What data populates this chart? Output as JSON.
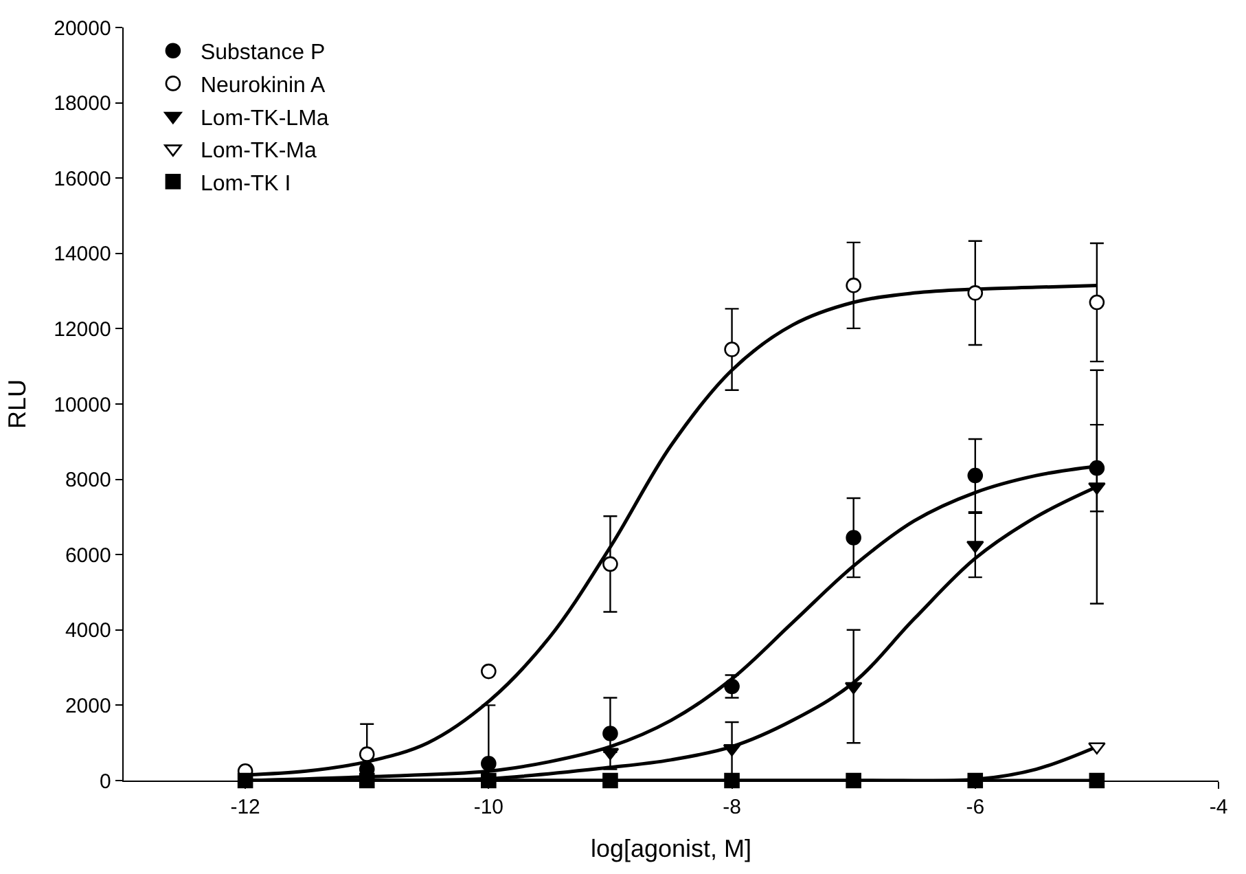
{
  "chart_data": {
    "type": "scatter",
    "xlabel": "log[agonist, M]",
    "ylabel": "RLU",
    "xlim": [
      -13,
      -4
    ],
    "xticks": [
      -12,
      -10,
      -8,
      -6,
      -4
    ],
    "ylim": [
      0,
      20000
    ],
    "yticks": [
      0,
      2000,
      4000,
      6000,
      8000,
      10000,
      12000,
      14000,
      16000,
      18000,
      20000
    ],
    "legend": "top left",
    "series": [
      {
        "name": "Substance P",
        "marker": "circle",
        "color": "#000000",
        "x": [
          -11,
          -10,
          -9,
          -8,
          -7,
          -6,
          -5
        ],
        "values": [
          300,
          450,
          1250,
          2500,
          6450,
          8100,
          8300
        ],
        "errors": [
          null,
          1550,
          950,
          300,
          1050,
          970,
          1150
        ]
      },
      {
        "name": "Neurokinin A",
        "marker": "circle",
        "color": "#ffffff",
        "x": [
          -12,
          -11,
          -10,
          -9,
          -8,
          -7,
          -6,
          -5
        ],
        "values": [
          250,
          700,
          2900,
          5750,
          11450,
          13150,
          12950,
          12700
        ],
        "errors": [
          null,
          800,
          null,
          1270,
          1080,
          1140,
          1380,
          1570
        ]
      },
      {
        "name": "Lom-TK-LMa",
        "marker": "triangle",
        "color": "#000000",
        "x": [
          -9,
          -8,
          -7,
          -6,
          -5
        ],
        "values": [
          750,
          850,
          2500,
          6250,
          7800
        ],
        "errors": [
          null,
          700,
          1500,
          850,
          3100
        ]
      },
      {
        "name": "Lom-TK-Ma",
        "marker": "triangle",
        "color": "#ffffff",
        "x": [
          -5
        ],
        "values": [
          900
        ]
      },
      {
        "name": "Lom-TK I",
        "marker": "square",
        "color": "#000000",
        "x": [
          -12,
          -11,
          -10,
          -9,
          -8,
          -7,
          -6,
          -5
        ],
        "values": [
          0,
          0,
          0,
          0,
          0,
          0,
          0,
          0
        ]
      },
      {
        "type": "line",
        "color": "#000000",
        "x": [
          -12,
          -11.5,
          -11,
          -10.5,
          -10,
          -9.5,
          -9,
          -8.5,
          -8,
          -7.5,
          -7,
          -6.5,
          -6,
          -5.5,
          -5
        ],
        "values": [
          150,
          250,
          500,
          1000,
          2100,
          3800,
          6200,
          8900,
          10900,
          12100,
          12700,
          12950,
          13050,
          13100,
          13150
        ]
      },
      {
        "type": "line",
        "color": "#000000",
        "x": [
          -12,
          -11,
          -10,
          -9.5,
          -9,
          -8.5,
          -8,
          -7.5,
          -7,
          -6.5,
          -6,
          -5.5,
          -5
        ],
        "values": [
          0,
          100,
          250,
          500,
          900,
          1600,
          2700,
          4200,
          5700,
          6900,
          7650,
          8100,
          8350
        ]
      },
      {
        "type": "line",
        "color": "#000000",
        "x": [
          -12,
          -11,
          -10,
          -9,
          -8.5,
          -8,
          -7.5,
          -7,
          -6.5,
          -6,
          -5.5,
          -5
        ],
        "values": [
          0,
          0,
          50,
          350,
          550,
          900,
          1600,
          2600,
          4300,
          5900,
          7000,
          7800
        ]
      },
      {
        "type": "line",
        "color": "#000000",
        "x": [
          -12,
          -7,
          -6,
          -5.5,
          -5
        ],
        "values": [
          0,
          0,
          30,
          300,
          900
        ]
      },
      {
        "type": "line",
        "color": "#000000",
        "x": [
          -12,
          -5
        ],
        "values": [
          0,
          0
        ]
      }
    ]
  }
}
